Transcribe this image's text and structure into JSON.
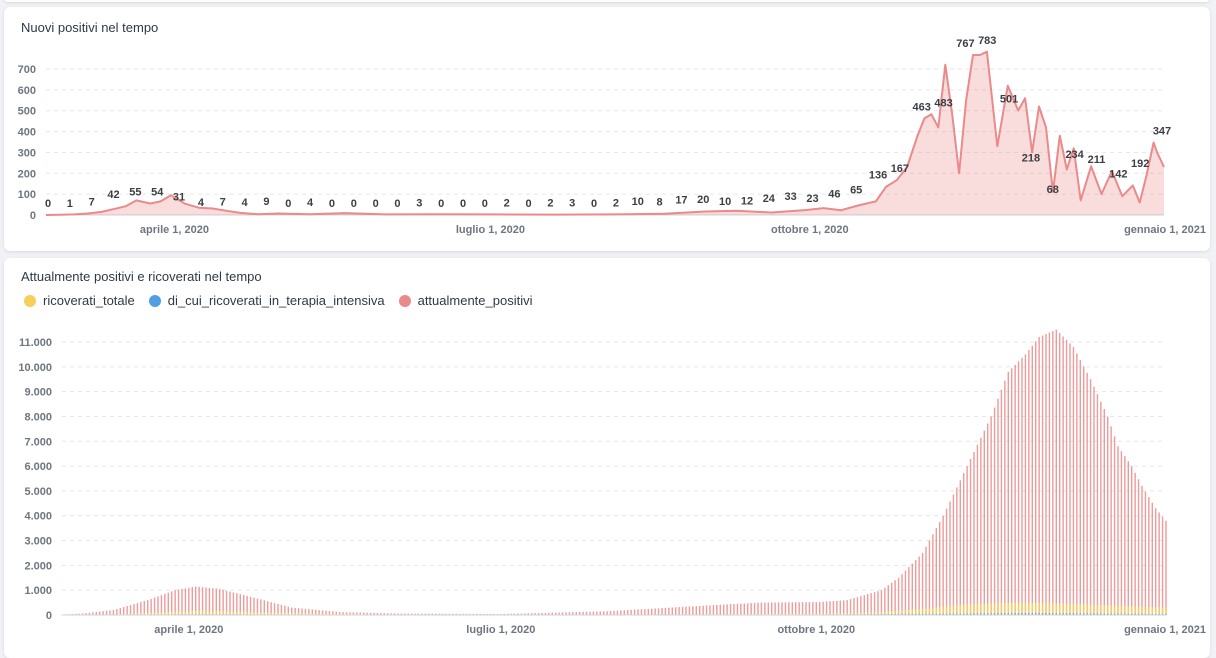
{
  "chart_data": [
    {
      "type": "area",
      "title": "Nuovi positivi nel tempo",
      "xlabel": "",
      "ylabel": "",
      "ylim": [
        0,
        750
      ],
      "yticks": [
        0,
        100,
        200,
        300,
        400,
        500,
        600,
        700
      ],
      "x_ticks": [
        "aprile 1, 2020",
        "luglio 1, 2020",
        "ottobre 1, 2020",
        "gennaio 1, 2021"
      ],
      "x_range": [
        "2020-02-24",
        "2021-01-11"
      ],
      "grid": true,
      "color": "#ea8a8a",
      "series": [
        {
          "x": [
            "2020-02-24",
            "2020-02-28",
            "2020-03-03",
            "2020-03-07",
            "2020-03-11",
            "2020-03-15",
            "2020-03-18",
            "2020-03-21",
            "2020-03-25",
            "2020-03-28",
            "2020-03-31",
            "2020-04-04",
            "2020-04-08",
            "2020-04-12",
            "2020-04-16",
            "2020-04-20",
            "2020-04-25",
            "2020-05-01",
            "2020-05-10",
            "2020-05-20",
            "2020-06-01",
            "2020-06-15",
            "2020-07-01",
            "2020-07-20",
            "2020-08-05",
            "2020-08-20",
            "2020-09-01",
            "2020-09-10",
            "2020-09-20",
            "2020-09-30",
            "2020-10-05",
            "2020-10-10",
            "2020-10-15",
            "2020-10-20",
            "2020-10-23",
            "2020-10-26",
            "2020-10-29",
            "2020-11-01",
            "2020-11-03",
            "2020-11-05",
            "2020-11-07",
            "2020-11-09",
            "2020-11-11",
            "2020-11-13",
            "2020-11-15",
            "2020-11-17",
            "2020-11-19",
            "2020-11-21",
            "2020-11-24",
            "2020-11-27",
            "2020-11-30",
            "2020-12-02",
            "2020-12-04",
            "2020-12-06",
            "2020-12-08",
            "2020-12-10",
            "2020-12-12",
            "2020-12-14",
            "2020-12-16",
            "2020-12-18",
            "2020-12-21",
            "2020-12-24",
            "2020-12-27",
            "2020-12-30",
            "2021-01-02",
            "2021-01-04",
            "2021-01-06",
            "2021-01-08",
            "2021-01-09",
            "2021-01-11"
          ],
          "values": [
            0,
            1,
            3,
            7,
            15,
            30,
            42,
            70,
            55,
            65,
            95,
            54,
            35,
            31,
            20,
            10,
            4,
            7,
            4,
            9,
            3,
            4,
            3,
            2,
            3,
            6,
            17,
            20,
            12,
            24,
            33,
            23,
            46,
            65,
            136,
            167,
            230,
            380,
            463,
            483,
            420,
            720,
            483,
            200,
            550,
            767,
            767,
            783,
            330,
            620,
            501,
            560,
            300,
            520,
            420,
            110,
            380,
            218,
            320,
            70,
            234,
            100,
            211,
            90,
            142,
            60,
            192,
            347,
            300,
            230
          ]
        }
      ],
      "labels": [
        {
          "x": "2020-02-24",
          "v": 0,
          "text": "0"
        },
        {
          "x": "2020-03-02",
          "v": 1,
          "text": "1"
        },
        {
          "x": "2020-03-09",
          "v": 7,
          "text": "7"
        },
        {
          "x": "2020-03-16",
          "v": 42,
          "text": "42"
        },
        {
          "x": "2020-03-23",
          "v": 55,
          "text": "55"
        },
        {
          "x": "2020-03-30",
          "v": 54,
          "text": "54"
        },
        {
          "x": "2020-04-06",
          "v": 31,
          "text": "31"
        },
        {
          "x": "2020-04-13",
          "v": 4,
          "text": "4"
        },
        {
          "x": "2020-04-20",
          "v": 7,
          "text": "7"
        },
        {
          "x": "2020-04-27",
          "v": 4,
          "text": "4"
        },
        {
          "x": "2020-05-04",
          "v": 9,
          "text": "9"
        },
        {
          "x": "2020-05-11",
          "v": 0,
          "text": "0"
        },
        {
          "x": "2020-05-18",
          "v": 4,
          "text": "4"
        },
        {
          "x": "2020-05-25",
          "v": 0,
          "text": "0"
        },
        {
          "x": "2020-06-01",
          "v": 0,
          "text": "0"
        },
        {
          "x": "2020-06-08",
          "v": 0,
          "text": "0"
        },
        {
          "x": "2020-06-15",
          "v": 0,
          "text": "0"
        },
        {
          "x": "2020-06-22",
          "v": 3,
          "text": "3"
        },
        {
          "x": "2020-06-29",
          "v": 0,
          "text": "0"
        },
        {
          "x": "2020-07-06",
          "v": 0,
          "text": "0"
        },
        {
          "x": "2020-07-13",
          "v": 0,
          "text": "0"
        },
        {
          "x": "2020-07-20",
          "v": 2,
          "text": "2"
        },
        {
          "x": "2020-07-27",
          "v": 0,
          "text": "0"
        },
        {
          "x": "2020-08-03",
          "v": 2,
          "text": "2"
        },
        {
          "x": "2020-08-10",
          "v": 3,
          "text": "3"
        },
        {
          "x": "2020-08-17",
          "v": 0,
          "text": "0"
        },
        {
          "x": "2020-08-24",
          "v": 2,
          "text": "2"
        },
        {
          "x": "2020-08-31",
          "v": 10,
          "text": "10"
        },
        {
          "x": "2020-09-07",
          "v": 8,
          "text": "8"
        },
        {
          "x": "2020-09-14",
          "v": 17,
          "text": "17"
        },
        {
          "x": "2020-09-21",
          "v": 20,
          "text": "20"
        },
        {
          "x": "2020-09-28",
          "v": 10,
          "text": "10"
        },
        {
          "x": "2020-10-05",
          "v": 12,
          "text": "12"
        },
        {
          "x": "2020-10-12",
          "v": 24,
          "text": "24"
        },
        {
          "x": "2020-10-19",
          "v": 33,
          "text": "33"
        },
        {
          "x": "2020-10-26",
          "v": 23,
          "text": "23"
        },
        {
          "x": "2020-11-02",
          "v": 46,
          "text": "46"
        },
        {
          "x": "2020-11-09",
          "v": 65,
          "text": "65"
        },
        {
          "x": "2020-11-16",
          "v": 136,
          "text": "136"
        },
        {
          "x": "2020-11-23",
          "v": 167,
          "text": "167"
        },
        {
          "x": "2020-11-30",
          "v": 463,
          "text": "463"
        },
        {
          "x": "2020-12-07",
          "v": 483,
          "text": "483"
        },
        {
          "x": "2020-12-14",
          "v": 767,
          "text": "767"
        },
        {
          "x": "2020-12-21",
          "v": 783,
          "text": "783"
        },
        {
          "x": "2020-12-28",
          "v": 501,
          "text": "501"
        },
        {
          "x": "2021-01-04",
          "v": 218,
          "text": "218"
        },
        {
          "x": "2021-01-11",
          "v": 68,
          "text": "68"
        },
        {
          "x": "2021-01-18",
          "v": 234,
          "text": "234"
        },
        {
          "x": "2021-01-25",
          "v": 211,
          "text": "211"
        },
        {
          "x": "2021-02-01",
          "v": 142,
          "text": "142"
        },
        {
          "x": "2021-02-08",
          "v": 192,
          "text": "192"
        },
        {
          "x": "2021-02-15",
          "v": 347,
          "text": "347"
        }
      ]
    },
    {
      "type": "bar",
      "title": "Attualmente positivi e ricoverati nel tempo",
      "xlabel": "",
      "ylabel": "",
      "ylim": [
        0,
        11700
      ],
      "yticks": [
        0,
        1000,
        2000,
        3000,
        4000,
        5000,
        6000,
        7000,
        8000,
        9000,
        10000,
        11000
      ],
      "ytick_labels": [
        "0",
        "1.000",
        "2.000",
        "3.000",
        "4.000",
        "5.000",
        "6.000",
        "7.000",
        "8.000",
        "9.000",
        "10.000",
        "11.000"
      ],
      "x_ticks": [
        "aprile 1, 2020",
        "luglio 1, 2020",
        "ottobre 1, 2020",
        "gennaio 1, 2021"
      ],
      "x_range": [
        "2020-02-24",
        "2021-01-11"
      ],
      "grid": true,
      "legend_position": "top-left",
      "series": [
        {
          "name": "ricoverati_totale",
          "color": "#f5cf5a",
          "x": [
            "2020-02-24",
            "2020-03-10",
            "2020-03-25",
            "2020-04-05",
            "2020-04-20",
            "2020-05-10",
            "2020-06-10",
            "2020-08-01",
            "2020-09-15",
            "2020-10-05",
            "2020-10-20",
            "2020-11-01",
            "2020-11-15",
            "2020-12-01",
            "2020-12-15",
            "2021-01-01",
            "2021-01-11"
          ],
          "values": [
            0,
            20,
            120,
            180,
            120,
            50,
            20,
            10,
            40,
            60,
            120,
            250,
            450,
            500,
            450,
            350,
            300
          ]
        },
        {
          "name": "di_cui_ricoverati_in_terapia_intensiva",
          "color": "#509ee3",
          "x": [
            "2020-02-24",
            "2020-03-25",
            "2020-04-05",
            "2020-05-10",
            "2020-09-15",
            "2020-11-15",
            "2020-12-01",
            "2021-01-01",
            "2021-01-11"
          ],
          "values": [
            0,
            20,
            30,
            10,
            5,
            60,
            80,
            50,
            40
          ]
        },
        {
          "name": "attualmente_positivi",
          "color": "#ea8a8a",
          "x": [
            "2020-02-24",
            "2020-03-01",
            "2020-03-10",
            "2020-03-20",
            "2020-03-28",
            "2020-04-03",
            "2020-04-10",
            "2020-04-20",
            "2020-05-01",
            "2020-05-15",
            "2020-06-01",
            "2020-07-01",
            "2020-08-01",
            "2020-09-01",
            "2020-09-15",
            "2020-10-01",
            "2020-10-10",
            "2020-10-20",
            "2020-10-25",
            "2020-11-01",
            "2020-11-07",
            "2020-11-14",
            "2020-11-21",
            "2020-11-26",
            "2020-12-01",
            "2020-12-05",
            "2020-12-10",
            "2020-12-15",
            "2020-12-20",
            "2020-12-25",
            "2020-12-28",
            "2021-01-01",
            "2021-01-04",
            "2021-01-08",
            "2021-01-11"
          ],
          "values": [
            20,
            60,
            200,
            600,
            1000,
            1150,
            1050,
            700,
            300,
            120,
            60,
            40,
            150,
            400,
            500,
            520,
            600,
            1000,
            1500,
            2500,
            4000,
            6000,
            8000,
            9800,
            10500,
            11200,
            11500,
            10800,
            9500,
            8000,
            6800,
            6000,
            5200,
            4300,
            3800
          ]
        }
      ]
    }
  ]
}
